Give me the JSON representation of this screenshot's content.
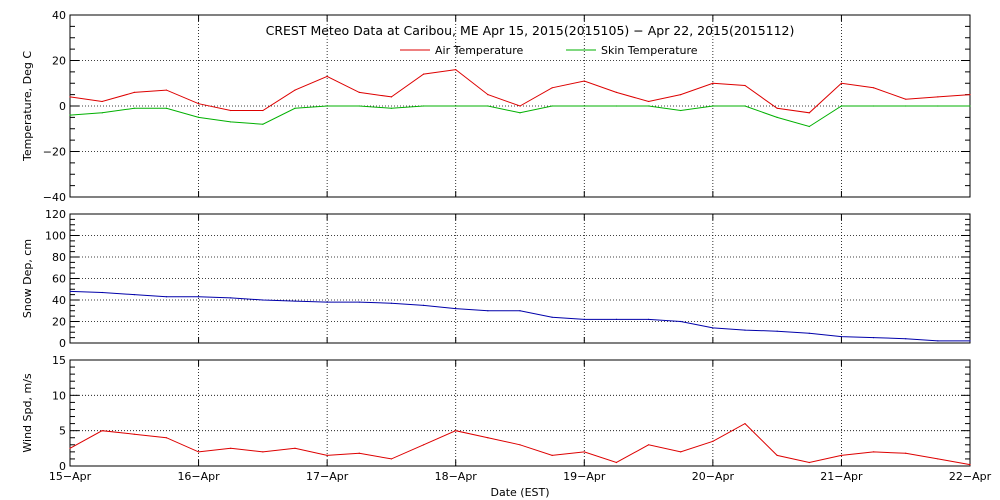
{
  "chart_data": [
    {
      "type": "line",
      "title": "CREST Meteo Data at Caribou, ME   Apr 15, 2015(2015105) − Apr 22, 2015(2015112)",
      "ylabel": "Temperature, Deg C",
      "ylim": [
        -40,
        40
      ],
      "yticks": [
        "40",
        "20",
        "0",
        "−20",
        "−40"
      ],
      "grid": true,
      "legend": "top-center",
      "x": [
        0,
        0.25,
        0.5,
        0.75,
        1,
        1.25,
        1.5,
        1.75,
        2,
        2.25,
        2.5,
        2.75,
        3,
        3.25,
        3.5,
        3.75,
        4,
        4.25,
        4.5,
        4.75,
        5,
        5.25,
        5.5,
        5.75,
        6,
        6.25,
        6.5,
        6.75,
        7
      ],
      "series": [
        {
          "name": "Air Temperature",
          "color": "#dd0000",
          "values": [
            4,
            2,
            6,
            7,
            1,
            -2,
            -2,
            7,
            13,
            6,
            4,
            14,
            16,
            5,
            0,
            8,
            11,
            6,
            2,
            5,
            10,
            9,
            -1,
            -3,
            10,
            8,
            3,
            4,
            5
          ]
        },
        {
          "name": "Skin Temperature",
          "color": "#00b000",
          "values": [
            -4,
            -3,
            -1,
            -1,
            -5,
            -7,
            -8,
            -1,
            0,
            0,
            -1,
            0,
            0,
            0,
            -3,
            0,
            0,
            0,
            0,
            -2,
            0,
            0,
            -5,
            -9,
            0,
            0,
            0,
            0,
            0
          ]
        }
      ]
    },
    {
      "type": "line",
      "ylabel": "Snow Dep, cm",
      "ylim": [
        0,
        120
      ],
      "yticks": [
        "120",
        "100",
        "80",
        "60",
        "40",
        "20",
        "0"
      ],
      "grid": true,
      "x": [
        0,
        0.25,
        0.5,
        0.75,
        1,
        1.25,
        1.5,
        1.75,
        2,
        2.25,
        2.5,
        2.75,
        3,
        3.25,
        3.5,
        3.75,
        4,
        4.25,
        4.5,
        4.75,
        5,
        5.25,
        5.5,
        5.75,
        6,
        6.25,
        6.5,
        6.75,
        7
      ],
      "series": [
        {
          "color": "#0000aa",
          "values": [
            48,
            47,
            45,
            43,
            43,
            42,
            40,
            39,
            38,
            38,
            37,
            35,
            32,
            30,
            30,
            24,
            22,
            22,
            22,
            20,
            14,
            12,
            11,
            9,
            6,
            5,
            4,
            2,
            2
          ]
        }
      ]
    },
    {
      "type": "line",
      "ylabel": "Wind Spd, m/s",
      "xlabel": "Date (EST)",
      "ylim": [
        0,
        15
      ],
      "yticks": [
        "15",
        "10",
        "5",
        "0"
      ],
      "grid": true,
      "x": [
        0,
        0.25,
        0.5,
        0.75,
        1,
        1.25,
        1.5,
        1.75,
        2,
        2.25,
        2.5,
        2.75,
        3,
        3.25,
        3.5,
        3.75,
        4,
        4.25,
        4.5,
        4.75,
        5,
        5.25,
        5.5,
        5.75,
        6,
        6.25,
        6.5,
        6.75,
        7
      ],
      "series": [
        {
          "color": "#dd0000",
          "values": [
            2.5,
            5,
            4.5,
            4,
            2,
            2.5,
            2,
            2.5,
            1.5,
            1.8,
            1,
            3,
            5,
            4,
            3,
            1.5,
            2,
            0.5,
            3,
            2,
            3.5,
            6,
            1.5,
            0.5,
            1.5,
            2,
            1.8,
            1,
            0.2
          ]
        }
      ]
    }
  ],
  "x_tick_labels": [
    "15−Apr",
    "16−Apr",
    "17−Apr",
    "18−Apr",
    "19−Apr",
    "20−Apr",
    "21−Apr",
    "22−Apr"
  ]
}
